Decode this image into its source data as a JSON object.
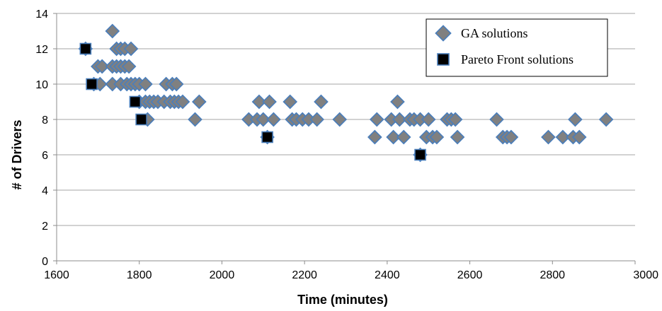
{
  "chart_data": {
    "type": "scatter",
    "title": "",
    "xlabel": "Time (minutes)",
    "ylabel": "# of Drivers",
    "xlim": [
      1600,
      3000
    ],
    "ylim": [
      0,
      14
    ],
    "x_ticks": [
      "1600",
      "1800",
      "2000",
      "2200",
      "2400",
      "2600",
      "2800",
      "3000"
    ],
    "y_ticks": [
      "0",
      "2",
      "4",
      "6",
      "8",
      "10",
      "12",
      "14"
    ],
    "grid": "horizontal",
    "legend_position": "top-right",
    "series": [
      {
        "name": "GA solutions",
        "marker": "diamond",
        "color": "#808080",
        "edge_color": "#4a7ebb",
        "points": [
          [
            1735,
            13
          ],
          [
            1670,
            12
          ],
          [
            1745,
            12
          ],
          [
            1755,
            12
          ],
          [
            1765,
            12
          ],
          [
            1780,
            12
          ],
          [
            1700,
            11
          ],
          [
            1710,
            11
          ],
          [
            1735,
            11
          ],
          [
            1745,
            11
          ],
          [
            1755,
            11
          ],
          [
            1765,
            11
          ],
          [
            1775,
            11
          ],
          [
            1690,
            10
          ],
          [
            1705,
            10
          ],
          [
            1735,
            10
          ],
          [
            1755,
            10
          ],
          [
            1770,
            10
          ],
          [
            1780,
            10
          ],
          [
            1790,
            10
          ],
          [
            1800,
            10
          ],
          [
            1815,
            10
          ],
          [
            1865,
            10
          ],
          [
            1880,
            10
          ],
          [
            1890,
            10
          ],
          [
            1800,
            9
          ],
          [
            1815,
            9
          ],
          [
            1825,
            9
          ],
          [
            1835,
            9
          ],
          [
            1845,
            9
          ],
          [
            1860,
            9
          ],
          [
            1875,
            9
          ],
          [
            1885,
            9
          ],
          [
            1895,
            9
          ],
          [
            1905,
            9
          ],
          [
            1945,
            9
          ],
          [
            2090,
            9
          ],
          [
            2115,
            9
          ],
          [
            2165,
            9
          ],
          [
            2240,
            9
          ],
          [
            2425,
            9
          ],
          [
            1820,
            8
          ],
          [
            1935,
            8
          ],
          [
            2065,
            8
          ],
          [
            2085,
            8
          ],
          [
            2100,
            8
          ],
          [
            2125,
            8
          ],
          [
            2170,
            8
          ],
          [
            2180,
            8
          ],
          [
            2195,
            8
          ],
          [
            2210,
            8
          ],
          [
            2230,
            8
          ],
          [
            2285,
            8
          ],
          [
            2375,
            8
          ],
          [
            2410,
            8
          ],
          [
            2430,
            8
          ],
          [
            2455,
            8
          ],
          [
            2465,
            8
          ],
          [
            2480,
            8
          ],
          [
            2500,
            8
          ],
          [
            2545,
            8
          ],
          [
            2555,
            8
          ],
          [
            2565,
            8
          ],
          [
            2665,
            8
          ],
          [
            2855,
            8
          ],
          [
            2930,
            8
          ],
          [
            2110,
            7
          ],
          [
            2370,
            7
          ],
          [
            2415,
            7
          ],
          [
            2440,
            7
          ],
          [
            2495,
            7
          ],
          [
            2510,
            7
          ],
          [
            2520,
            7
          ],
          [
            2570,
            7
          ],
          [
            2680,
            7
          ],
          [
            2690,
            7
          ],
          [
            2700,
            7
          ],
          [
            2790,
            7
          ],
          [
            2825,
            7
          ],
          [
            2850,
            7
          ],
          [
            2865,
            7
          ],
          [
            2480,
            6
          ]
        ]
      },
      {
        "name": "Pareto Front solutions",
        "marker": "square",
        "color": "#000000",
        "edge_color": "#4a7ebb",
        "points": [
          [
            1670,
            12
          ],
          [
            1685,
            10
          ],
          [
            1790,
            9
          ],
          [
            1805,
            8
          ],
          [
            2110,
            7
          ],
          [
            2480,
            6
          ]
        ]
      }
    ]
  }
}
